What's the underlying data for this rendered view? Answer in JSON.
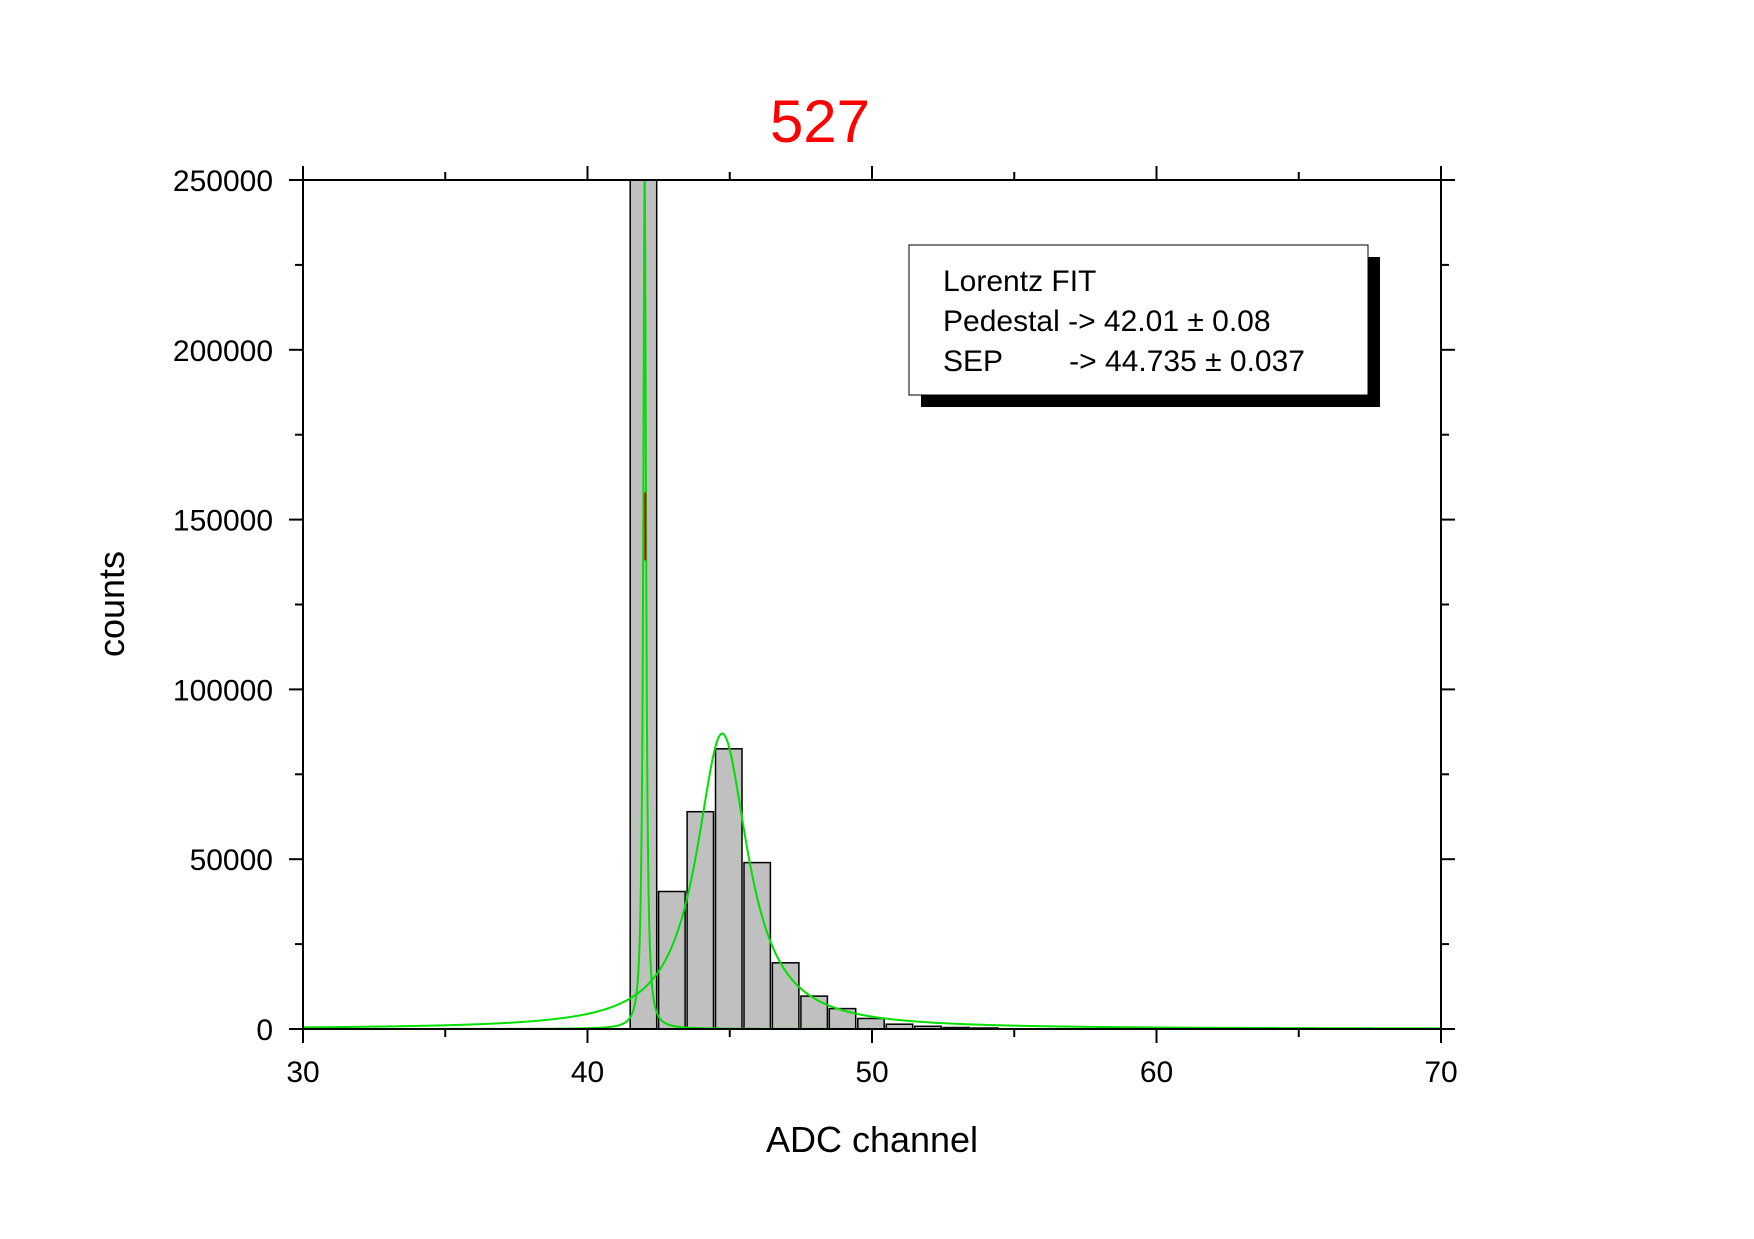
{
  "chart_data": {
    "type": "bar",
    "title": "527",
    "xlabel": "ADC channel",
    "ylabel": "counts",
    "xlim": [
      30,
      70
    ],
    "ylim": [
      0,
      250000
    ],
    "x_ticks": [
      30,
      40,
      50,
      60,
      70
    ],
    "y_ticks": [
      0,
      50000,
      100000,
      150000,
      200000,
      250000
    ],
    "x_tick_labels": [
      "30",
      "40",
      "50",
      "60",
      "70"
    ],
    "y_tick_labels": [
      "0",
      "50000",
      "100000",
      "150000",
      "200000",
      "250000"
    ],
    "bin_width": 1,
    "bins": [
      {
        "x": 42,
        "count": 250000
      },
      {
        "x": 43,
        "count": 40500
      },
      {
        "x": 44,
        "count": 64000
      },
      {
        "x": 45,
        "count": 82500
      },
      {
        "x": 46,
        "count": 49000
      },
      {
        "x": 47,
        "count": 19500
      },
      {
        "x": 48,
        "count": 9700
      },
      {
        "x": 49,
        "count": 6000
      },
      {
        "x": 50,
        "count": 3100
      },
      {
        "x": 51,
        "count": 1400
      },
      {
        "x": 52,
        "count": 800
      },
      {
        "x": 53,
        "count": 450
      },
      {
        "x": 54,
        "count": 300
      }
    ],
    "fits": [
      {
        "model": "lorentz",
        "center": 42.01,
        "fwhm": 0.12,
        "peak": 250000,
        "color": "#00e000"
      },
      {
        "model": "lorentz",
        "center": 44.735,
        "fwhm": 2.2,
        "peak": 87000,
        "color": "#00e000"
      }
    ],
    "fit_color": "#00e000",
    "residual_color": "#cc0000",
    "bar_fill": "#c0c0c0",
    "bar_stroke": "#000000",
    "title_color": "#ff0000",
    "grid": false,
    "legend": {
      "placement": "top-right",
      "lines": [
        "Lorentz FIT",
        "Pedestal -> 42.01 ± 0.08",
        "SEP        -> 44.735 ± 0.037"
      ]
    }
  }
}
